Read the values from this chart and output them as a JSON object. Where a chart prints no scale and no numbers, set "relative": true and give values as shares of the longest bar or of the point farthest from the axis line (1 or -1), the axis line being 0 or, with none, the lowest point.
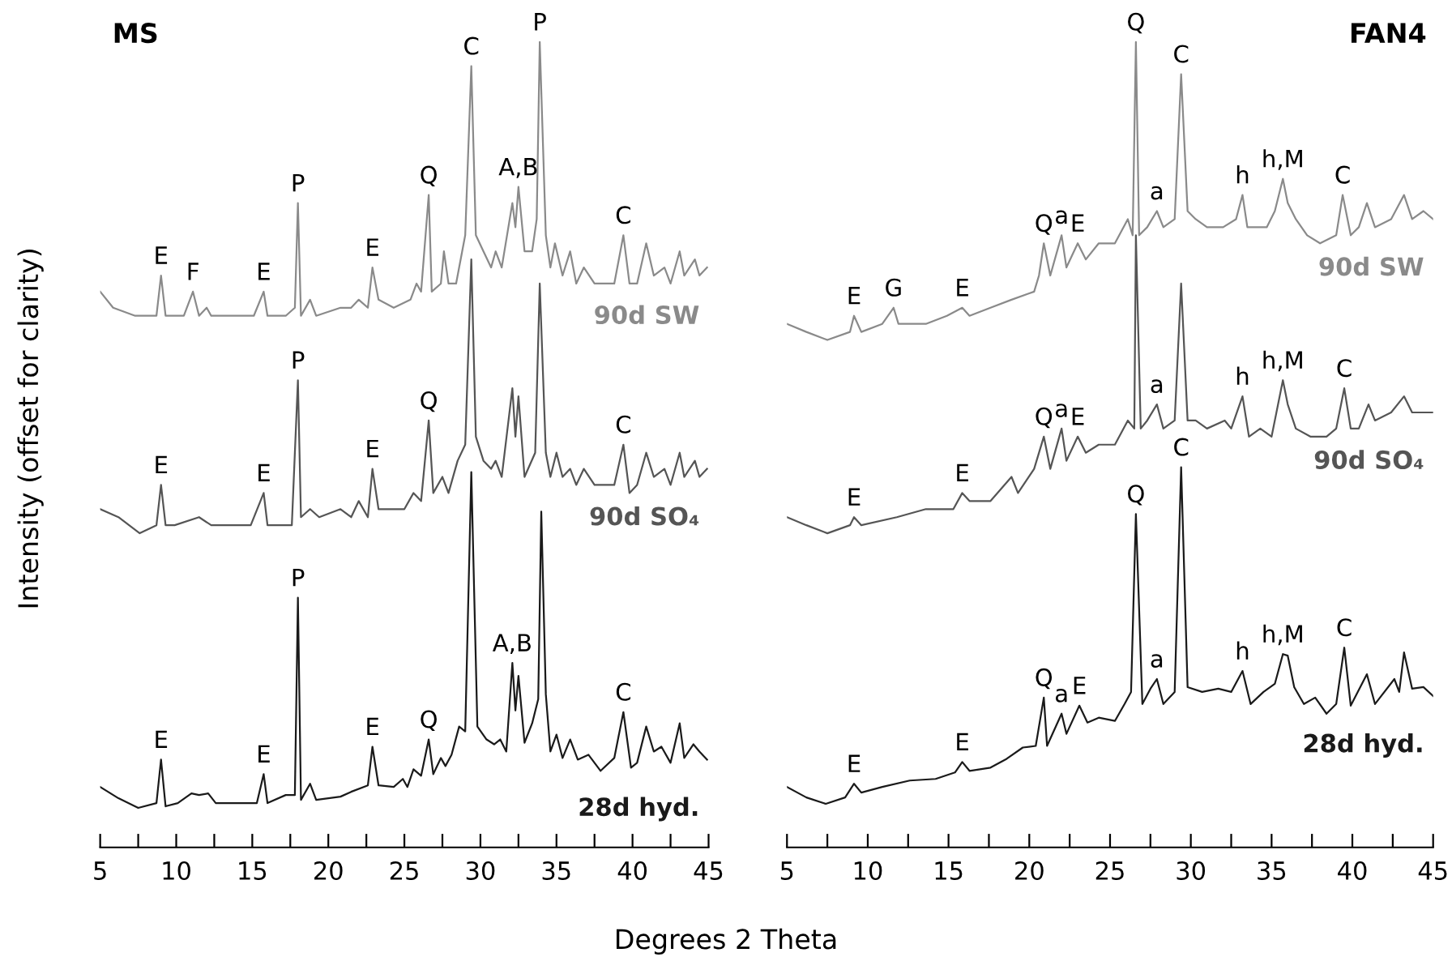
{
  "chart_data": [
    {
      "type": "line",
      "title": "MS",
      "xlabel": "Degrees 2 Theta",
      "ylabel": "Intensity (offset for clarity)",
      "relative": true,
      "xlim": [
        5,
        45
      ],
      "xticks": [
        5,
        {
          "value": 7.5,
          "label": null
        },
        10,
        {
          "value": 12.5,
          "label": null
        },
        15,
        {
          "value": 17.5,
          "label": null
        },
        20,
        {
          "value": 22.5,
          "label": null
        },
        25,
        {
          "value": 27.5,
          "label": null
        },
        30,
        {
          "value": 32.5,
          "label": null
        },
        35,
        {
          "value": 37.5,
          "label": null
        },
        40,
        {
          "value": 42.5,
          "label": null
        },
        45
      ],
      "tick_labels": "x",
      "grid": false,
      "legend": false,
      "marker": "none",
      "line_style": "solid",
      "series": [
        {
          "name": "90d SW",
          "color": "#8a8a8a",
          "x": [
            5.0,
            5.85,
            7.3,
            8.7,
            9.0,
            9.3,
            10.5,
            11.1,
            11.5,
            12.0,
            12.3,
            13.7,
            15.1,
            15.75,
            16.0,
            17.2,
            17.8,
            18.0,
            18.2,
            18.8,
            19.2,
            20.8,
            21.5,
            22.0,
            22.6,
            22.9,
            23.3,
            24.3,
            25.4,
            25.8,
            26.1,
            26.6,
            26.8,
            27.4,
            27.6,
            27.9,
            28.4,
            29.0,
            29.4,
            29.7,
            30.2,
            30.7,
            31.0,
            31.4,
            32.1,
            32.3,
            32.5,
            32.9,
            33.4,
            33.7,
            33.9,
            34.3,
            34.6,
            34.9,
            35.4,
            35.9,
            36.3,
            36.8,
            37.5,
            38.8,
            39.4,
            39.8,
            40.3,
            40.9,
            41.4,
            42.1,
            42.5,
            43.1,
            43.4,
            44.1,
            44.4,
            44.9
          ],
          "values": [
            0.69,
            0.67,
            0.66,
            0.66,
            0.71,
            0.66,
            0.66,
            0.69,
            0.66,
            0.67,
            0.66,
            0.66,
            0.66,
            0.69,
            0.66,
            0.66,
            0.67,
            0.8,
            0.66,
            0.68,
            0.66,
            0.67,
            0.67,
            0.68,
            0.67,
            0.72,
            0.68,
            0.67,
            0.68,
            0.7,
            0.69,
            0.81,
            0.69,
            0.7,
            0.74,
            0.7,
            0.7,
            0.76,
            0.97,
            0.76,
            0.74,
            0.72,
            0.74,
            0.72,
            0.8,
            0.77,
            0.82,
            0.74,
            0.74,
            0.78,
            1.0,
            0.76,
            0.72,
            0.75,
            0.71,
            0.74,
            0.7,
            0.72,
            0.7,
            0.7,
            0.76,
            0.7,
            0.7,
            0.75,
            0.71,
            0.72,
            0.7,
            0.74,
            0.71,
            0.73,
            0.71,
            0.72
          ]
        },
        {
          "name": "90d SO₄",
          "color": "#555555",
          "x": [
            5.0,
            6.2,
            7.6,
            8.7,
            9.0,
            9.3,
            9.9,
            11.5,
            12.3,
            13.7,
            14.9,
            15.75,
            16.0,
            17.6,
            18.0,
            18.2,
            18.8,
            19.4,
            20.8,
            21.5,
            22.0,
            22.6,
            22.9,
            23.3,
            24.3,
            25.0,
            25.6,
            26.1,
            26.6,
            26.9,
            27.5,
            27.9,
            28.5,
            29.0,
            29.4,
            29.7,
            30.2,
            30.7,
            31.0,
            31.4,
            32.1,
            32.3,
            32.5,
            32.9,
            33.6,
            33.9,
            34.3,
            34.6,
            35.0,
            35.4,
            35.9,
            36.3,
            36.8,
            37.5,
            38.8,
            39.4,
            39.8,
            40.3,
            40.9,
            41.4,
            42.1,
            42.5,
            43.1,
            43.4,
            44.1,
            44.4,
            44.9
          ],
          "values": [
            0.42,
            0.41,
            0.39,
            0.4,
            0.45,
            0.4,
            0.4,
            0.41,
            0.4,
            0.4,
            0.4,
            0.44,
            0.4,
            0.4,
            0.58,
            0.41,
            0.42,
            0.41,
            0.42,
            0.41,
            0.43,
            0.41,
            0.47,
            0.42,
            0.42,
            0.42,
            0.44,
            0.43,
            0.53,
            0.44,
            0.46,
            0.44,
            0.48,
            0.5,
            0.73,
            0.51,
            0.48,
            0.47,
            0.48,
            0.46,
            0.57,
            0.51,
            0.56,
            0.46,
            0.49,
            0.7,
            0.49,
            0.46,
            0.49,
            0.46,
            0.47,
            0.45,
            0.47,
            0.45,
            0.45,
            0.5,
            0.44,
            0.45,
            0.49,
            0.46,
            0.47,
            0.45,
            0.49,
            0.46,
            0.48,
            0.46,
            0.47
          ]
        },
        {
          "name": "28d hyd.",
          "color": "#1a1a1a",
          "x": [
            5.0,
            6.2,
            7.5,
            8.7,
            9.0,
            9.3,
            10.1,
            11.0,
            11.5,
            12.1,
            12.6,
            14.0,
            15.3,
            15.75,
            16.0,
            17.2,
            17.8,
            18.0,
            18.2,
            18.8,
            19.2,
            20.8,
            21.5,
            22.6,
            22.9,
            23.3,
            24.3,
            24.9,
            25.2,
            25.6,
            26.1,
            26.6,
            26.9,
            27.4,
            27.7,
            28.1,
            28.6,
            29.0,
            29.4,
            29.8,
            30.4,
            30.9,
            31.3,
            31.7,
            32.1,
            32.3,
            32.5,
            32.9,
            33.4,
            33.8,
            34.0,
            34.3,
            34.6,
            35.0,
            35.4,
            35.9,
            36.4,
            37.1,
            37.9,
            38.8,
            39.4,
            39.9,
            40.3,
            40.9,
            41.4,
            41.9,
            42.5,
            43.1,
            43.4,
            44.0,
            44.4,
            44.9
          ],
          "values": [
            0.075,
            0.061,
            0.049,
            0.055,
            0.109,
            0.051,
            0.055,
            0.067,
            0.065,
            0.067,
            0.055,
            0.055,
            0.055,
            0.091,
            0.055,
            0.065,
            0.065,
            0.31,
            0.059,
            0.079,
            0.059,
            0.063,
            0.069,
            0.077,
            0.125,
            0.077,
            0.075,
            0.085,
            0.075,
            0.097,
            0.089,
            0.134,
            0.091,
            0.111,
            0.101,
            0.115,
            0.15,
            0.144,
            0.466,
            0.15,
            0.134,
            0.128,
            0.134,
            0.119,
            0.229,
            0.17,
            0.213,
            0.13,
            0.154,
            0.184,
            0.417,
            0.19,
            0.119,
            0.14,
            0.111,
            0.134,
            0.109,
            0.115,
            0.095,
            0.111,
            0.168,
            0.099,
            0.105,
            0.15,
            0.119,
            0.125,
            0.105,
            0.154,
            0.111,
            0.128,
            0.119,
            0.109
          ]
        }
      ],
      "annotations": [
        {
          "text": "E",
          "x": 9.0,
          "y": 0.71
        },
        {
          "text": "F",
          "x": 11.1,
          "y": 0.69
        },
        {
          "text": "E",
          "x": 15.75,
          "y": 0.69
        },
        {
          "text": "P",
          "x": 18.0,
          "y": 0.8
        },
        {
          "text": "E",
          "x": 22.9,
          "y": 0.72
        },
        {
          "text": "Q",
          "x": 26.6,
          "y": 0.81
        },
        {
          "text": "C",
          "x": 29.4,
          "y": 0.97
        },
        {
          "text": "A,B",
          "x": 32.5,
          "y": 0.82
        },
        {
          "text": "P",
          "x": 33.9,
          "y": 1.0
        },
        {
          "text": "C",
          "x": 39.4,
          "y": 0.76
        },
        {
          "text": "E",
          "x": 9.0,
          "y": 0.45
        },
        {
          "text": "E",
          "x": 15.75,
          "y": 0.44
        },
        {
          "text": "P",
          "x": 18.0,
          "y": 0.58
        },
        {
          "text": "E",
          "x": 22.9,
          "y": 0.47
        },
        {
          "text": "Q",
          "x": 26.6,
          "y": 0.53
        },
        {
          "text": "C",
          "x": 39.4,
          "y": 0.5
        },
        {
          "text": "E",
          "x": 9.0,
          "y": 0.109
        },
        {
          "text": "E",
          "x": 15.75,
          "y": 0.091
        },
        {
          "text": "P",
          "x": 18.0,
          "y": 0.31
        },
        {
          "text": "E",
          "x": 22.9,
          "y": 0.125
        },
        {
          "text": "Q",
          "x": 26.6,
          "y": 0.134
        },
        {
          "text": "A,B",
          "x": 32.1,
          "y": 0.229
        },
        {
          "text": "C",
          "x": 39.4,
          "y": 0.168
        }
      ]
    },
    {
      "type": "line",
      "title": "FAN4",
      "relative": true,
      "xlim": [
        5,
        45
      ],
      "xticks": [
        5,
        {
          "value": 7.5,
          "label": null
        },
        10,
        {
          "value": 12.5,
          "label": null
        },
        15,
        {
          "value": 17.5,
          "label": null
        },
        20,
        {
          "value": 22.5,
          "label": null
        },
        25,
        {
          "value": 27.5,
          "label": null
        },
        30,
        {
          "value": 32.5,
          "label": null
        },
        35,
        {
          "value": 37.5,
          "label": null
        },
        40,
        {
          "value": 42.5,
          "label": null
        },
        45
      ],
      "tick_labels": "x",
      "grid": false,
      "legend": false,
      "marker": "none",
      "line_style": "solid",
      "series": [
        {
          "name": "90d SW",
          "color": "#8a8a8a",
          "x": [
            5.0,
            6.2,
            7.5,
            8.9,
            9.15,
            9.6,
            10.9,
            11.6,
            11.9,
            13.6,
            14.9,
            15.85,
            16.3,
            17.6,
            18.9,
            20.3,
            20.6,
            20.9,
            21.3,
            22.0,
            22.3,
            23.0,
            23.5,
            24.3,
            25.3,
            26.1,
            26.4,
            26.6,
            26.8,
            27.3,
            27.9,
            28.3,
            29.0,
            29.4,
            29.8,
            30.3,
            31.0,
            32.0,
            32.8,
            33.2,
            33.5,
            34.0,
            34.7,
            35.2,
            35.7,
            36.0,
            36.5,
            37.2,
            38.0,
            39.0,
            39.4,
            39.9,
            40.4,
            40.9,
            41.4,
            42.4,
            43.2,
            43.7,
            44.4,
            45.0
          ],
          "values": [
            0.65,
            0.64,
            0.63,
            0.64,
            0.66,
            0.64,
            0.65,
            0.67,
            0.65,
            0.65,
            0.66,
            0.67,
            0.66,
            0.67,
            0.68,
            0.69,
            0.71,
            0.75,
            0.71,
            0.76,
            0.72,
            0.75,
            0.73,
            0.75,
            0.75,
            0.78,
            0.76,
            1.0,
            0.76,
            0.77,
            0.79,
            0.77,
            0.78,
            0.96,
            0.79,
            0.78,
            0.77,
            0.77,
            0.78,
            0.81,
            0.77,
            0.77,
            0.77,
            0.79,
            0.83,
            0.8,
            0.78,
            0.76,
            0.75,
            0.76,
            0.81,
            0.76,
            0.77,
            0.8,
            0.77,
            0.78,
            0.81,
            0.78,
            0.79,
            0.78
          ]
        },
        {
          "name": "90d SO₄",
          "color": "#555555",
          "x": [
            5.0,
            6.2,
            7.5,
            8.9,
            9.15,
            9.6,
            11.8,
            13.6,
            15.3,
            15.85,
            16.3,
            17.6,
            18.9,
            19.3,
            20.3,
            20.9,
            21.3,
            22.0,
            22.3,
            23.0,
            23.5,
            24.3,
            25.3,
            26.1,
            26.5,
            26.6,
            26.9,
            27.3,
            27.9,
            28.3,
            29.0,
            29.4,
            29.8,
            30.3,
            31.0,
            32.1,
            32.5,
            33.2,
            33.6,
            34.3,
            35.0,
            35.4,
            35.7,
            36.0,
            36.5,
            37.4,
            38.4,
            39.0,
            39.5,
            39.9,
            40.4,
            41.0,
            41.4,
            42.4,
            43.2,
            43.7,
            44.4,
            45.0
          ],
          "values": [
            0.41,
            0.4,
            0.39,
            0.4,
            0.41,
            0.4,
            0.41,
            0.42,
            0.42,
            0.44,
            0.43,
            0.43,
            0.46,
            0.44,
            0.47,
            0.51,
            0.47,
            0.52,
            0.48,
            0.51,
            0.49,
            0.5,
            0.5,
            0.53,
            0.52,
            0.76,
            0.52,
            0.53,
            0.55,
            0.52,
            0.53,
            0.7,
            0.53,
            0.53,
            0.52,
            0.53,
            0.52,
            0.56,
            0.51,
            0.52,
            0.51,
            0.55,
            0.58,
            0.55,
            0.52,
            0.51,
            0.51,
            0.52,
            0.57,
            0.52,
            0.52,
            0.55,
            0.53,
            0.54,
            0.56,
            0.54,
            0.54,
            0.54
          ]
        },
        {
          "name": "28d hyd.",
          "color": "#1a1a1a",
          "x": [
            5.0,
            6.2,
            7.4,
            8.6,
            9.15,
            9.6,
            10.9,
            12.6,
            14.2,
            15.4,
            15.85,
            16.3,
            17.6,
            18.6,
            19.6,
            20.4,
            20.9,
            21.1,
            22.0,
            22.3,
            23.1,
            23.6,
            24.3,
            25.3,
            25.9,
            26.3,
            26.6,
            27.0,
            27.5,
            27.9,
            28.3,
            29.0,
            29.4,
            29.8,
            30.7,
            31.7,
            32.5,
            33.2,
            33.7,
            34.5,
            35.2,
            35.7,
            36.0,
            36.4,
            37.0,
            37.7,
            38.4,
            39.0,
            39.5,
            39.9,
            40.9,
            41.4,
            42.6,
            42.9,
            43.2,
            43.7,
            44.4,
            45.0
          ],
          "values": [
            0.075,
            0.062,
            0.054,
            0.062,
            0.079,
            0.068,
            0.075,
            0.083,
            0.085,
            0.093,
            0.106,
            0.095,
            0.099,
            0.11,
            0.124,
            0.126,
            0.186,
            0.126,
            0.166,
            0.141,
            0.176,
            0.155,
            0.161,
            0.157,
            0.178,
            0.193,
            0.414,
            0.178,
            0.197,
            0.209,
            0.178,
            0.193,
            0.472,
            0.199,
            0.193,
            0.197,
            0.193,
            0.219,
            0.178,
            0.193,
            0.203,
            0.24,
            0.238,
            0.199,
            0.178,
            0.186,
            0.166,
            0.178,
            0.248,
            0.176,
            0.215,
            0.178,
            0.209,
            0.193,
            0.242,
            0.197,
            0.199,
            0.188
          ]
        }
      ],
      "annotations": [
        {
          "text": "E",
          "x": 9.15,
          "y": 0.66
        },
        {
          "text": "G",
          "x": 11.6,
          "y": 0.67
        },
        {
          "text": "E",
          "x": 15.85,
          "y": 0.67
        },
        {
          "text": "Q",
          "x": 20.9,
          "y": 0.75
        },
        {
          "text": "a",
          "x": 22.0,
          "y": 0.76
        },
        {
          "text": "E",
          "x": 23.0,
          "y": 0.75
        },
        {
          "text": "Q",
          "x": 26.6,
          "y": 1.0
        },
        {
          "text": "a",
          "x": 27.9,
          "y": 0.79
        },
        {
          "text": "C",
          "x": 29.4,
          "y": 0.96
        },
        {
          "text": "h",
          "x": 33.2,
          "y": 0.81
        },
        {
          "text": "h,M",
          "x": 35.7,
          "y": 0.83
        },
        {
          "text": "C",
          "x": 39.4,
          "y": 0.81
        },
        {
          "text": "E",
          "x": 9.15,
          "y": 0.41
        },
        {
          "text": "E",
          "x": 15.85,
          "y": 0.44
        },
        {
          "text": "Q",
          "x": 20.9,
          "y": 0.51
        },
        {
          "text": "a",
          "x": 22.0,
          "y": 0.52
        },
        {
          "text": "E",
          "x": 23.0,
          "y": 0.51
        },
        {
          "text": "a",
          "x": 27.9,
          "y": 0.55
        },
        {
          "text": "h",
          "x": 33.2,
          "y": 0.56
        },
        {
          "text": "h,M",
          "x": 35.7,
          "y": 0.58
        },
        {
          "text": "C",
          "x": 39.5,
          "y": 0.57
        },
        {
          "text": "E",
          "x": 9.15,
          "y": 0.079
        },
        {
          "text": "E",
          "x": 15.85,
          "y": 0.106
        },
        {
          "text": "Q",
          "x": 20.9,
          "y": 0.186
        },
        {
          "text": "a",
          "x": 22.0,
          "y": 0.166
        },
        {
          "text": "E",
          "x": 23.1,
          "y": 0.176
        },
        {
          "text": "Q",
          "x": 26.6,
          "y": 0.414
        },
        {
          "text": "a",
          "x": 27.9,
          "y": 0.209
        },
        {
          "text": "C",
          "x": 29.4,
          "y": 0.472
        },
        {
          "text": "h",
          "x": 33.2,
          "y": 0.219
        },
        {
          "text": "h,M",
          "x": 35.7,
          "y": 0.24
        },
        {
          "text": "C",
          "x": 39.5,
          "y": 0.248
        }
      ]
    }
  ]
}
